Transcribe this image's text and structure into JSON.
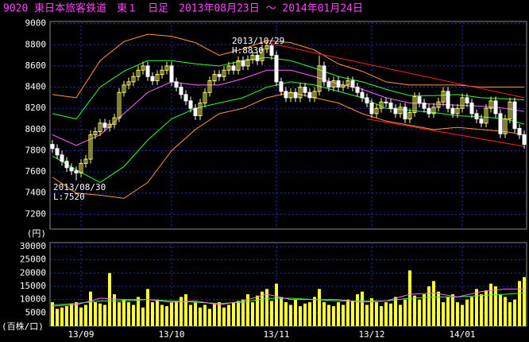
{
  "chart_data": {
    "type": "candlestick",
    "title": "9020 東日本旅客鉄道　東１　日足　2013年08月23日 ～ 2014年01月24日",
    "categories": [
      null,
      null,
      null,
      null,
      null,
      null,
      "13/09",
      null,
      null,
      null,
      null,
      null,
      null,
      null,
      null,
      null,
      null,
      null,
      null,
      null,
      null,
      null,
      null,
      null,
      null,
      "13/10",
      null,
      null,
      null,
      null,
      null,
      null,
      null,
      null,
      null,
      null,
      null,
      null,
      null,
      null,
      null,
      null,
      null,
      null,
      null,
      null,
      null,
      "13/11",
      null,
      null,
      null,
      null,
      null,
      null,
      null,
      null,
      null,
      null,
      null,
      null,
      null,
      null,
      null,
      null,
      null,
      null,
      null,
      "13/12",
      null,
      null,
      null,
      null,
      null,
      null,
      null,
      null,
      null,
      null,
      null,
      null,
      null,
      null,
      null,
      null,
      null,
      null,
      "14/01",
      null,
      null,
      null,
      null,
      null,
      null,
      null,
      null,
      null,
      null,
      null,
      null,
      null
    ],
    "open": [
      7860,
      7820,
      7760,
      7700,
      7640,
      7610,
      7590,
      7680,
      7720,
      7950,
      7980,
      8060,
      8020,
      8050,
      8110,
      8350,
      8420,
      8450,
      8500,
      8560,
      8600,
      8500,
      8460,
      8520,
      8560,
      8600,
      8450,
      8400,
      8330,
      8270,
      8200,
      8130,
      8250,
      8350,
      8460,
      8520,
      8500,
      8560,
      8600,
      8560,
      8650,
      8600,
      8660,
      8700,
      8650,
      8760,
      8790,
      8700,
      8450,
      8360,
      8300,
      8350,
      8300,
      8400,
      8350,
      8300,
      8360,
      8600,
      8450,
      8400,
      8460,
      8400,
      8420,
      8460,
      8400,
      8350,
      8300,
      8250,
      8150,
      8200,
      8260,
      8250,
      8200,
      8150,
      8210,
      8100,
      8160,
      8310,
      8250,
      8200,
      8150,
      8210,
      8260,
      8360,
      8200,
      8150,
      8200,
      8300,
      8250,
      8150,
      8100,
      8060,
      8200,
      8270,
      8150,
      7960,
      8100,
      8260,
      8010,
      7950
    ],
    "high": [
      7900,
      7860,
      7800,
      7740,
      7680,
      7650,
      7720,
      7760,
      7990,
      8020,
      8100,
      8100,
      8090,
      8150,
      8390,
      8460,
      8490,
      8540,
      8600,
      8640,
      8640,
      8540,
      8560,
      8600,
      8640,
      8640,
      8490,
      8440,
      8370,
      8310,
      8240,
      8290,
      8390,
      8500,
      8560,
      8560,
      8600,
      8640,
      8640,
      8690,
      8690,
      8700,
      8740,
      8740,
      8800,
      8830,
      8810,
      8740,
      8490,
      8400,
      8390,
      8390,
      8440,
      8440,
      8390,
      8400,
      8700,
      8640,
      8490,
      8500,
      8500,
      8460,
      8500,
      8500,
      8440,
      8390,
      8340,
      8290,
      8240,
      8300,
      8300,
      8290,
      8240,
      8250,
      8250,
      8200,
      8350,
      8350,
      8290,
      8240,
      8250,
      8300,
      8400,
      8400,
      8240,
      8240,
      8340,
      8340,
      8290,
      8190,
      8140,
      8240,
      8310,
      8310,
      8190,
      8140,
      8300,
      8300,
      8050,
      7990
    ],
    "low": [
      7780,
      7720,
      7660,
      7600,
      7570,
      7520,
      7550,
      7640,
      7680,
      7910,
      7940,
      7980,
      7980,
      8010,
      8070,
      8310,
      8380,
      8410,
      8460,
      8520,
      8460,
      8420,
      8420,
      8480,
      8520,
      8410,
      8360,
      8290,
      8230,
      8160,
      8090,
      8090,
      8210,
      8310,
      8420,
      8460,
      8460,
      8520,
      8520,
      8520,
      8560,
      8560,
      8620,
      8610,
      8610,
      8720,
      8660,
      8410,
      8320,
      8260,
      8260,
      8260,
      8260,
      8310,
      8260,
      8260,
      8320,
      8410,
      8360,
      8360,
      8360,
      8360,
      8380,
      8360,
      8310,
      8260,
      8210,
      8110,
      8110,
      8160,
      8210,
      8160,
      8110,
      8110,
      8060,
      8060,
      8120,
      8210,
      8160,
      8110,
      8110,
      8170,
      8220,
      8160,
      8110,
      8110,
      8160,
      8210,
      8110,
      8060,
      8020,
      8020,
      8160,
      8110,
      7920,
      7920,
      8060,
      7970,
      7910,
      7820
    ],
    "close": [
      7820,
      7760,
      7700,
      7640,
      7610,
      7590,
      7680,
      7720,
      7950,
      7980,
      8060,
      8020,
      8050,
      8110,
      8350,
      8420,
      8450,
      8500,
      8560,
      8600,
      8500,
      8460,
      8520,
      8560,
      8600,
      8450,
      8400,
      8330,
      8270,
      8200,
      8130,
      8250,
      8350,
      8460,
      8520,
      8500,
      8560,
      8600,
      8560,
      8650,
      8600,
      8660,
      8700,
      8650,
      8760,
      8790,
      8700,
      8450,
      8360,
      8300,
      8350,
      8300,
      8400,
      8350,
      8300,
      8360,
      8600,
      8450,
      8400,
      8460,
      8400,
      8420,
      8460,
      8400,
      8350,
      8300,
      8250,
      8150,
      8200,
      8260,
      8250,
      8200,
      8150,
      8210,
      8100,
      8160,
      8310,
      8250,
      8200,
      8150,
      8210,
      8260,
      8360,
      8200,
      8150,
      8200,
      8300,
      8250,
      8150,
      8100,
      8060,
      8200,
      8270,
      8150,
      7960,
      8100,
      8260,
      8010,
      7950,
      7860
    ],
    "up_color": "#ffff66",
    "down_color": "#ffffff",
    "ylim": [
      7060,
      9020
    ],
    "yticks": [
      7200,
      7400,
      7600,
      7800,
      8000,
      8200,
      8400,
      8600,
      8800,
      9000
    ],
    "y_unit": "(円)",
    "bands": {
      "x": [
        0,
        5,
        10,
        15,
        20,
        25,
        30,
        35,
        40,
        45,
        50,
        55,
        60,
        65,
        70,
        75,
        80,
        85,
        90,
        95,
        99
      ],
      "series": [
        {
          "color": "#ff9933",
          "values": [
            8330,
            8300,
            8650,
            8830,
            8900,
            8880,
            8820,
            8700,
            8760,
            8840,
            8820,
            8750,
            8620,
            8550,
            8450,
            8420,
            8420,
            8420,
            8400,
            8400,
            8400
          ]
        },
        {
          "color": "#33ff33",
          "values": [
            8150,
            8100,
            8400,
            8550,
            8650,
            8650,
            8620,
            8600,
            8650,
            8680,
            8650,
            8580,
            8500,
            8450,
            8380,
            8320,
            8320,
            8330,
            8300,
            8290,
            8280
          ]
        },
        {
          "color": "#ff66ff",
          "values": [
            7950,
            7850,
            7950,
            8150,
            8350,
            8450,
            8420,
            8420,
            8480,
            8560,
            8560,
            8500,
            8430,
            8380,
            8300,
            8250,
            8240,
            8230,
            8220,
            8200,
            8170
          ]
        },
        {
          "color": "#33ff33",
          "values": [
            7750,
            7620,
            7500,
            7650,
            7900,
            8100,
            8200,
            8250,
            8300,
            8400,
            8450,
            8420,
            8360,
            8300,
            8200,
            8180,
            8160,
            8130,
            8120,
            8100,
            8050
          ]
        },
        {
          "color": "#ff9933",
          "values": [
            7550,
            7400,
            7380,
            7350,
            7500,
            7800,
            8000,
            8150,
            8200,
            8300,
            8350,
            8300,
            8250,
            8150,
            8080,
            8040,
            8000,
            8020,
            8000,
            7980,
            7950
          ]
        }
      ]
    },
    "trendlines": [
      {
        "color": "#ff2222",
        "x": [
          44,
          99
        ],
        "values": [
          8830,
          8300
        ]
      },
      {
        "color": "#ff2222",
        "x": [
          66,
          99
        ],
        "values": [
          8100,
          7840
        ]
      }
    ],
    "annotations": [
      [
        "2013/10/29",
        "H:8830"
      ],
      [
        "2013/08/30",
        "L:7520"
      ]
    ],
    "volume": {
      "type": "bar",
      "color": "#ffff33",
      "values": [
        9000,
        6500,
        7000,
        7500,
        8500,
        9000,
        7000,
        8000,
        13000,
        9000,
        8500,
        8000,
        20000,
        12000,
        9000,
        10000,
        9000,
        8000,
        11000,
        7000,
        14000,
        9000,
        10000,
        8000,
        7500,
        9000,
        9500,
        11000,
        12000,
        8000,
        9000,
        7000,
        8000,
        6500,
        8500,
        9000,
        7000,
        8000,
        9000,
        9500,
        10000,
        12000,
        9000,
        11500,
        13000,
        14000,
        9500,
        16000,
        11000,
        9000,
        8000,
        10000,
        7500,
        8500,
        9000,
        11000,
        14000,
        9000,
        8000,
        7500,
        9000,
        8000,
        10000,
        9500,
        12000,
        13000,
        8000,
        10500,
        9000,
        7500,
        9000,
        8500,
        11000,
        8000,
        10000,
        21000,
        11500,
        10000,
        12000,
        15000,
        17000,
        13000,
        9000,
        11000,
        12000,
        9000,
        8000,
        10000,
        11000,
        14000,
        12000,
        13500,
        16000,
        15000,
        12000,
        11000,
        9000,
        10000,
        17000,
        18500
      ],
      "ylim": [
        0,
        31500
      ],
      "yticks": [
        5000,
        10000,
        15000,
        20000,
        25000,
        30000
      ],
      "y_unit": "(百株/口)",
      "lines": {
        "x": [
          0,
          5,
          10,
          15,
          20,
          25,
          30,
          35,
          40,
          45,
          50,
          55,
          60,
          65,
          70,
          75,
          80,
          85,
          90,
          95,
          99
        ],
        "series": [
          {
            "color": "#33ff33",
            "values": [
              8000,
              8500,
              9500,
              9500,
              10000,
              9500,
              9000,
              8500,
              9000,
              10500,
              10500,
              10000,
              9500,
              9500,
              9500,
              10500,
              11000,
              11000,
              11500,
              12000,
              12500
            ]
          },
          {
            "color": "#ff66ff",
            "values": [
              7500,
              8000,
              10500,
              10000,
              10000,
              9000,
              9500,
              8000,
              9500,
              12000,
              10000,
              10000,
              10000,
              9000,
              9500,
              12000,
              12500,
              11000,
              13000,
              14000,
              14000
            ]
          }
        ]
      }
    }
  }
}
